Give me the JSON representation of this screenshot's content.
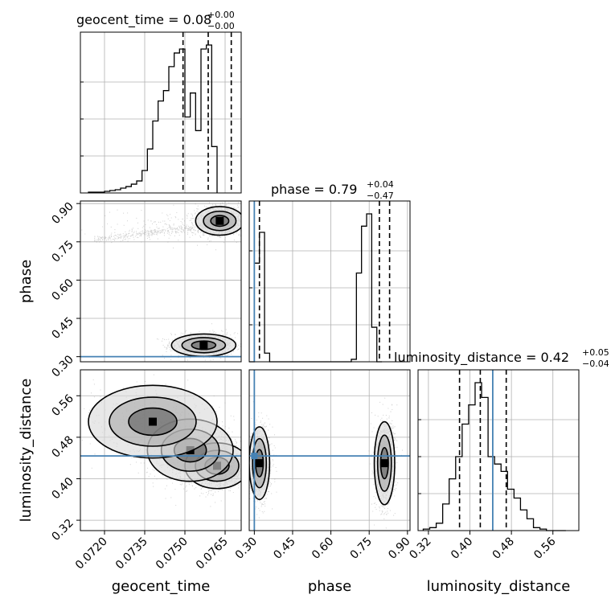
{
  "chart_data": {
    "type": "corner",
    "parameters": [
      {
        "key": "geocent_time",
        "label": "geocent_time",
        "range": [
          0.0711,
          0.0771
        ],
        "ticks": [
          "0.0720",
          "0.0735",
          "0.0750",
          "0.0765"
        ],
        "tick_values": [
          0.072,
          0.0735,
          0.075,
          0.0765
        ],
        "title_main": "geocent_time = 0.08",
        "title_plus": "+0.00",
        "title_minus": "−0.00",
        "quantiles": [
          0.07493,
          0.07587,
          0.07673
        ],
        "truth": null,
        "hist": {
          "edges_from": 0.0714,
          "bin_width": 0.0002,
          "counts": [
            1,
            1,
            1,
            2,
            3,
            4,
            6,
            8,
            11,
            15,
            28,
            55,
            90,
            115,
            128,
            158,
            175,
            180,
            95,
            125,
            78,
            180,
            185,
            58
          ]
        }
      },
      {
        "key": "phase",
        "label": "phase",
        "range": [
          0.28,
          0.91
        ],
        "ticks": [
          "0.30",
          "0.45",
          "0.60",
          "0.75",
          "0.90"
        ],
        "tick_values": [
          0.3,
          0.45,
          0.6,
          0.75,
          0.9
        ],
        "title_main": "phase = 0.79",
        "title_plus": "+0.04",
        "title_minus": "−0.47",
        "quantiles": [
          0.32,
          0.79,
          0.83
        ],
        "truth": 0.3,
        "hist": {
          "edges_from": 0.28,
          "bin_width": 0.02,
          "counts": [
            0,
            80,
            105,
            7,
            0,
            0,
            0,
            0,
            0,
            0,
            0,
            0,
            0,
            0,
            0,
            0,
            0,
            0,
            0,
            0,
            2,
            72,
            110,
            120,
            28,
            0
          ]
        }
      },
      {
        "key": "luminosity_distance",
        "label": "luminosity_distance",
        "range": [
          0.3,
          0.61
        ],
        "ticks": [
          "0.32",
          "0.40",
          "0.48",
          "0.56"
        ],
        "tick_values": [
          0.32,
          0.4,
          0.48,
          0.56
        ],
        "title_main": "luminosity_distance = 0.42",
        "title_plus": "+0.05",
        "title_minus": "−0.04",
        "quantiles": [
          0.38,
          0.42,
          0.47
        ],
        "truth": 0.444,
        "hist": {
          "edges_from": 0.31,
          "bin_width": 0.0125,
          "counts": [
            1,
            2,
            5,
            18,
            35,
            50,
            72,
            85,
            100,
            90,
            50,
            45,
            40,
            28,
            22,
            14,
            8,
            2,
            1,
            0,
            0,
            0
          ]
        }
      }
    ],
    "pairs": [
      {
        "x": "geocent_time",
        "y": "phase",
        "modes": [
          {
            "x": 0.0763,
            "y": 0.832,
            "sx": 0.00045,
            "sy": 0.028,
            "w": 0.55
          },
          {
            "x": 0.0757,
            "y": 0.345,
            "sx": 0.0006,
            "sy": 0.022,
            "w": 0.4
          },
          {
            "x": 0.0742,
            "y": 0.81,
            "sx": 0.0012,
            "sy": 0.03,
            "w": 0.05
          }
        ],
        "scatter_extent": {
          "x0": 0.0716,
          "x1": 0.0771
        }
      },
      {
        "x": "geocent_time",
        "y": "luminosity_distance",
        "modes": [
          {
            "x": 0.0762,
            "y": 0.425,
            "sx": 0.0006,
            "sy": 0.022,
            "w": 0.5
          },
          {
            "x": 0.0752,
            "y": 0.455,
            "sx": 0.0008,
            "sy": 0.03,
            "w": 0.35
          },
          {
            "x": 0.0738,
            "y": 0.51,
            "sx": 0.0012,
            "sy": 0.035,
            "w": 0.15
          }
        ]
      },
      {
        "x": "phase",
        "y": "luminosity_distance",
        "modes": [
          {
            "x": 0.32,
            "y": 0.43,
            "sx": 0.02,
            "sy": 0.035,
            "w": 0.5
          },
          {
            "x": 0.81,
            "y": 0.43,
            "sx": 0.02,
            "sy": 0.04,
            "w": 0.5
          }
        ]
      }
    ],
    "quantile_levels": [
      0.16,
      0.5,
      0.84
    ],
    "truth_color": "#4682b4",
    "line_color": "#000000",
    "grid": true
  }
}
